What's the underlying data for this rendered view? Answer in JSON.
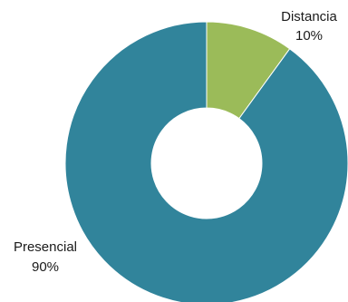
{
  "chart_data": {
    "type": "pie",
    "variant": "donut",
    "title": "",
    "slices": [
      {
        "label": "Distancia",
        "percent_label": "10%",
        "value": 10,
        "color": "#9bbb59"
      },
      {
        "label": "Presencial",
        "percent_label": "90%",
        "value": 90,
        "color": "#31849b"
      }
    ],
    "start_angle_deg": 0,
    "direction": "clockwise",
    "legend": "none"
  }
}
